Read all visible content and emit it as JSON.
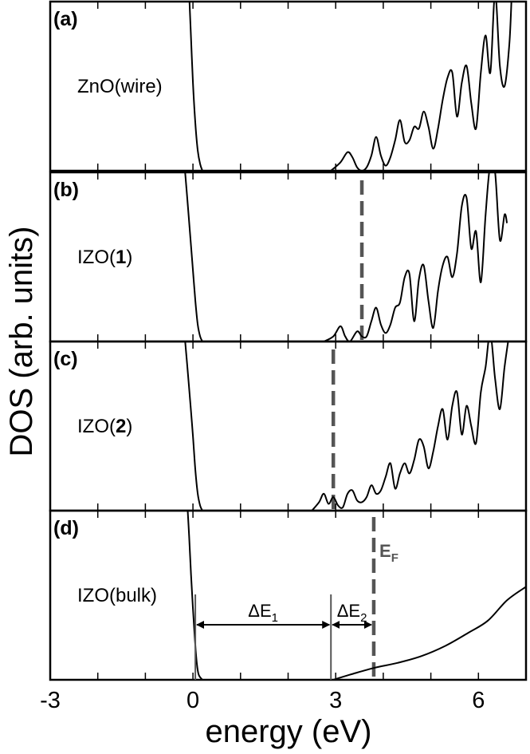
{
  "chart_data": {
    "type": "line",
    "xlabel": "energy (eV)",
    "ylabel": "DOS (arb. units)",
    "xlim": [
      -3,
      7
    ],
    "xticks": [
      -3,
      -2,
      -1,
      0,
      1,
      2,
      3,
      4,
      5,
      6,
      7
    ],
    "xtick_labels": [
      "-3",
      "0",
      "3",
      "6"
    ],
    "xtick_label_values": [
      -3,
      0,
      3,
      6
    ],
    "ylim": [
      0,
      1
    ],
    "grid": false,
    "colors": {
      "curve": "#000000",
      "fermi_line": "#555555",
      "marker": "#555555"
    },
    "panels": [
      {
        "tag": "(a)",
        "label_prefix": "ZnO(wire)",
        "label_bold": "",
        "label_suffix": "",
        "fermi_level": null,
        "valence_points": [
          [
            -0.08,
            1.05
          ],
          [
            -0.05,
            0.85
          ],
          [
            0.0,
            0.52
          ],
          [
            0.05,
            0.28
          ],
          [
            0.1,
            0.12
          ],
          [
            0.15,
            0.04
          ],
          [
            0.2,
            0.0
          ]
        ],
        "conduction_points": [
          [
            2.9,
            0.0
          ],
          [
            3.1,
            0.05
          ],
          [
            3.25,
            0.11
          ],
          [
            3.35,
            0.08
          ],
          [
            3.45,
            0.02
          ],
          [
            3.55,
            0.0
          ],
          [
            3.65,
            0.02
          ],
          [
            3.75,
            0.09
          ],
          [
            3.85,
            0.2
          ],
          [
            3.95,
            0.09
          ],
          [
            4.05,
            0.03
          ],
          [
            4.15,
            0.08
          ],
          [
            4.25,
            0.18
          ],
          [
            4.35,
            0.3
          ],
          [
            4.45,
            0.17
          ],
          [
            4.55,
            0.18
          ],
          [
            4.65,
            0.26
          ],
          [
            4.75,
            0.25
          ],
          [
            4.85,
            0.35
          ],
          [
            4.95,
            0.26
          ],
          [
            5.05,
            0.13
          ],
          [
            5.15,
            0.25
          ],
          [
            5.25,
            0.42
          ],
          [
            5.35,
            0.55
          ],
          [
            5.45,
            0.58
          ],
          [
            5.55,
            0.32
          ],
          [
            5.65,
            0.52
          ],
          [
            5.75,
            0.62
          ],
          [
            5.85,
            0.4
          ],
          [
            5.95,
            0.25
          ],
          [
            6.05,
            0.58
          ],
          [
            6.15,
            0.8
          ],
          [
            6.25,
            0.58
          ],
          [
            6.35,
            1.05
          ],
          [
            6.45,
            0.62
          ],
          [
            6.55,
            0.5
          ],
          [
            6.65,
            0.75
          ],
          [
            6.7,
            1.05
          ]
        ]
      },
      {
        "tag": "(b)",
        "label_prefix": "IZO(",
        "label_bold": "1",
        "label_suffix": ")",
        "fermi_level": 3.55,
        "valence_points": [
          [
            -0.18,
            1.05
          ],
          [
            -0.12,
            0.85
          ],
          [
            -0.05,
            0.6
          ],
          [
            0.0,
            0.42
          ],
          [
            0.05,
            0.24
          ],
          [
            0.1,
            0.1
          ],
          [
            0.15,
            0.03
          ],
          [
            0.2,
            0.0
          ]
        ],
        "conduction_points": [
          [
            2.75,
            0.0
          ],
          [
            2.95,
            0.03
          ],
          [
            3.1,
            0.09
          ],
          [
            3.2,
            0.03
          ],
          [
            3.3,
            0.0
          ],
          [
            3.45,
            0.06
          ],
          [
            3.55,
            0.03
          ],
          [
            3.65,
            0.03
          ],
          [
            3.75,
            0.12
          ],
          [
            3.85,
            0.2
          ],
          [
            3.95,
            0.1
          ],
          [
            4.05,
            0.05
          ],
          [
            4.15,
            0.1
          ],
          [
            4.25,
            0.2
          ],
          [
            4.35,
            0.23
          ],
          [
            4.45,
            0.38
          ],
          [
            4.55,
            0.4
          ],
          [
            4.65,
            0.12
          ],
          [
            4.75,
            0.37
          ],
          [
            4.85,
            0.45
          ],
          [
            4.95,
            0.24
          ],
          [
            5.05,
            0.08
          ],
          [
            5.15,
            0.3
          ],
          [
            5.25,
            0.45
          ],
          [
            5.35,
            0.5
          ],
          [
            5.45,
            0.38
          ],
          [
            5.55,
            0.52
          ],
          [
            5.65,
            0.8
          ],
          [
            5.75,
            0.85
          ],
          [
            5.85,
            0.55
          ],
          [
            5.95,
            0.65
          ],
          [
            6.05,
            0.35
          ],
          [
            6.15,
            0.75
          ],
          [
            6.25,
            1.05
          ],
          [
            6.35,
            1.0
          ],
          [
            6.45,
            0.6
          ],
          [
            6.55,
            0.75
          ],
          [
            6.6,
            0.7
          ]
        ]
      },
      {
        "tag": "(c)",
        "label_prefix": "IZO(",
        "label_bold": "2",
        "label_suffix": ")",
        "fermi_level": 2.95,
        "valence_points": [
          [
            -0.18,
            1.05
          ],
          [
            -0.12,
            0.86
          ],
          [
            -0.05,
            0.62
          ],
          [
            0.0,
            0.44
          ],
          [
            0.05,
            0.24
          ],
          [
            0.1,
            0.1
          ],
          [
            0.15,
            0.03
          ],
          [
            0.2,
            0.0
          ]
        ],
        "conduction_points": [
          [
            2.5,
            0.0
          ],
          [
            2.65,
            0.05
          ],
          [
            2.75,
            0.1
          ],
          [
            2.85,
            0.04
          ],
          [
            2.95,
            0.08
          ],
          [
            3.05,
            0.03
          ],
          [
            3.15,
            0.02
          ],
          [
            3.25,
            0.1
          ],
          [
            3.35,
            0.12
          ],
          [
            3.45,
            0.06
          ],
          [
            3.55,
            0.05
          ],
          [
            3.65,
            0.08
          ],
          [
            3.75,
            0.15
          ],
          [
            3.85,
            0.1
          ],
          [
            3.95,
            0.12
          ],
          [
            4.05,
            0.2
          ],
          [
            4.15,
            0.28
          ],
          [
            4.25,
            0.13
          ],
          [
            4.35,
            0.22
          ],
          [
            4.45,
            0.28
          ],
          [
            4.55,
            0.22
          ],
          [
            4.65,
            0.3
          ],
          [
            4.75,
            0.42
          ],
          [
            4.85,
            0.38
          ],
          [
            4.95,
            0.25
          ],
          [
            5.05,
            0.35
          ],
          [
            5.15,
            0.5
          ],
          [
            5.25,
            0.6
          ],
          [
            5.35,
            0.42
          ],
          [
            5.45,
            0.62
          ],
          [
            5.55,
            0.7
          ],
          [
            5.65,
            0.45
          ],
          [
            5.75,
            0.62
          ],
          [
            5.85,
            0.5
          ],
          [
            5.95,
            0.4
          ],
          [
            6.05,
            0.7
          ],
          [
            6.15,
            0.85
          ],
          [
            6.25,
            1.05
          ],
          [
            6.35,
            0.78
          ],
          [
            6.45,
            0.6
          ],
          [
            6.55,
            0.85
          ],
          [
            6.65,
            1.05
          ]
        ]
      },
      {
        "tag": "(d)",
        "label_prefix": "IZO(bulk)",
        "label_bold": "",
        "label_suffix": "",
        "fermi_level": 3.8,
        "annotations": {
          "delta_e1": {
            "base": "ΔE",
            "sub": "1",
            "from": 0.05,
            "to": 2.9
          },
          "delta_e2": {
            "base": "ΔE",
            "sub": "2",
            "from": 2.9,
            "to": 3.8
          },
          "fermi": {
            "base": "E",
            "sub": "F"
          },
          "markers": [
            0.05,
            2.9
          ]
        },
        "valence_points": [
          [
            -0.12,
            1.05
          ],
          [
            -0.08,
            0.85
          ],
          [
            -0.04,
            0.62
          ],
          [
            0.0,
            0.42
          ],
          [
            0.04,
            0.24
          ],
          [
            0.08,
            0.1
          ],
          [
            0.12,
            0.03
          ],
          [
            0.2,
            0.0
          ]
        ],
        "conduction_points": [
          [
            2.95,
            0.0
          ],
          [
            3.3,
            0.03
          ],
          [
            3.8,
            0.07
          ],
          [
            4.3,
            0.1
          ],
          [
            4.8,
            0.14
          ],
          [
            5.3,
            0.2
          ],
          [
            5.8,
            0.28
          ],
          [
            6.2,
            0.35
          ],
          [
            6.6,
            0.47
          ],
          [
            7.0,
            0.55
          ]
        ]
      }
    ]
  }
}
